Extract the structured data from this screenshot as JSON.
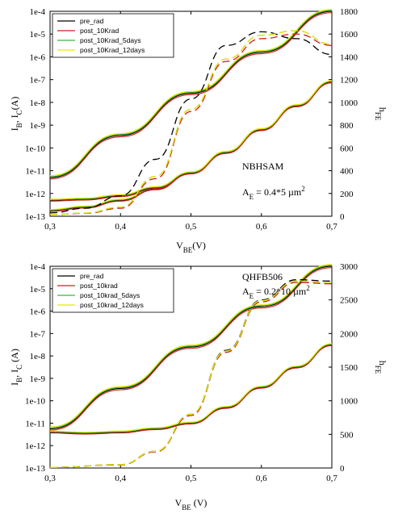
{
  "chart_data": [
    {
      "type": "line",
      "title": "",
      "xlabel": "V_BE(V)",
      "ylabel_left": "I_B, I_C(A)",
      "ylabel_right": "h_FE",
      "x_ticks": [
        "0,3",
        "0,4",
        "0,5",
        "0,6",
        "0,7"
      ],
      "y_left_ticks": [
        "1e-13",
        "1e-12",
        "1e-11",
        "1e-10",
        "1e-9",
        "1e-8",
        "1e-7",
        "1e-6",
        "1e-5",
        "1e-4"
      ],
      "y_right_ticks": [
        "0",
        "200",
        "400",
        "600",
        "800",
        "1000",
        "1200",
        "1400",
        "1600",
        "1800"
      ],
      "xlim": [
        0.3,
        0.7
      ],
      "ylim_left_log10": [
        -13,
        -4
      ],
      "ylim_right": [
        0,
        1800
      ],
      "legend_position": "top-left",
      "annotations": [
        "NBHSAM",
        "A_E = 0.4*5 µm^2"
      ],
      "series": [
        {
          "name": "pre_rad",
          "color": "#000000"
        },
        {
          "name": "post_10Krad",
          "color": "#cc2222"
        },
        {
          "name": "post_10Krad_5days",
          "color": "#3cb43c"
        },
        {
          "name": "post_10Krad_12days",
          "color": "#e6e600"
        }
      ],
      "ic_curves": [
        {
          "x": [
            0.3,
            0.4,
            0.5,
            0.6,
            0.7
          ],
          "log_y": [
            -11.3,
            -9.45,
            -7.6,
            -5.8,
            -4.0
          ]
        }
      ],
      "ib_curves": [
        {
          "x": [
            0.3,
            0.35,
            0.4,
            0.45,
            0.5,
            0.55,
            0.6,
            0.65,
            0.7
          ],
          "log_y": [
            -12.75,
            -12.6,
            -12.3,
            -11.8,
            -11.1,
            -10.2,
            -9.2,
            -8.15,
            -7.1
          ]
        },
        {
          "x": [
            0.3,
            0.35,
            0.4,
            0.45,
            0.5,
            0.55,
            0.6,
            0.65,
            0.7
          ],
          "log_y": [
            -12.3,
            -12.25,
            -12.1,
            -11.75,
            -11.1,
            -10.2,
            -9.2,
            -8.15,
            -7.1
          ]
        }
      ],
      "hfe_curves": [
        {
          "name": "pre_rad",
          "x": [
            0.3,
            0.35,
            0.4,
            0.45,
            0.5,
            0.55,
            0.6,
            0.65,
            0.7
          ],
          "y": [
            30,
            70,
            180,
            500,
            1030,
            1500,
            1620,
            1560,
            1420
          ]
        },
        {
          "name": "post_10Krad",
          "x": [
            0.3,
            0.35,
            0.4,
            0.45,
            0.5,
            0.55,
            0.6,
            0.65,
            0.7
          ],
          "y": [
            15,
            25,
            70,
            330,
            920,
            1360,
            1560,
            1600,
            1500
          ]
        },
        {
          "name": "post_10Krad_5days",
          "x": [
            0.3,
            0.35,
            0.4,
            0.45,
            0.5,
            0.55,
            0.6,
            0.65,
            0.7
          ],
          "y": [
            15,
            28,
            80,
            350,
            940,
            1380,
            1590,
            1630,
            1510
          ]
        },
        {
          "name": "post_10Krad_12days",
          "x": [
            0.3,
            0.35,
            0.4,
            0.45,
            0.5,
            0.55,
            0.6,
            0.65,
            0.7
          ],
          "y": [
            15,
            28,
            80,
            350,
            940,
            1380,
            1590,
            1630,
            1510
          ]
        }
      ]
    },
    {
      "type": "line",
      "title": "",
      "xlabel": "V_BE (V)",
      "ylabel_left": "I_B, I_C (A)",
      "ylabel_right": "h_FE",
      "x_ticks": [
        "0,3",
        "0,4",
        "0,5",
        "0,6",
        "0,7"
      ],
      "y_left_ticks": [
        "1e-13",
        "1e-12",
        "1e-11",
        "1e-10",
        "1e-9",
        "1e-8",
        "1e-7",
        "1e-6",
        "1e-5",
        "1e-4"
      ],
      "y_right_ticks": [
        "0",
        "500",
        "1000",
        "1500",
        "2000",
        "2500",
        "3000"
      ],
      "xlim": [
        0.3,
        0.7
      ],
      "ylim_left_log10": [
        -13,
        -4
      ],
      "ylim_right": [
        0,
        3000
      ],
      "legend_position": "top-left",
      "annotations": [
        "QHFB506",
        "A_E = 0.2*10 µm^2"
      ],
      "series": [
        {
          "name": "pre_rad",
          "color": "#000000"
        },
        {
          "name": "post_10krad",
          "color": "#cc2222"
        },
        {
          "name": "post_10krad_5days",
          "color": "#3cb43c"
        },
        {
          "name": "post_10krad_12days",
          "color": "#e6e600"
        }
      ],
      "ic_curves": [
        {
          "x": [
            0.3,
            0.4,
            0.5,
            0.6,
            0.7
          ],
          "log_y": [
            -11.25,
            -9.45,
            -7.6,
            -5.8,
            -4.0
          ]
        }
      ],
      "ib_curves": [
        {
          "x": [
            0.3,
            0.35,
            0.4,
            0.45,
            0.5,
            0.55,
            0.6,
            0.65,
            0.7
          ],
          "log_y": [
            -11.4,
            -11.45,
            -11.4,
            -11.25,
            -11.0,
            -10.3,
            -9.4,
            -8.5,
            -7.5
          ]
        }
      ],
      "hfe_curves": [
        {
          "name": "pre_rad",
          "x": [
            0.3,
            0.4,
            0.45,
            0.5,
            0.55,
            0.6,
            0.65,
            0.7
          ],
          "y": [
            10,
            50,
            250,
            800,
            1750,
            2500,
            2800,
            2780
          ]
        },
        {
          "name": "post_10krad",
          "x": [
            0.3,
            0.4,
            0.45,
            0.5,
            0.55,
            0.6,
            0.65,
            0.7
          ],
          "y": [
            10,
            45,
            240,
            780,
            1720,
            2470,
            2760,
            2740
          ]
        },
        {
          "name": "post_10krad_5days",
          "x": [
            0.3,
            0.4,
            0.45,
            0.5,
            0.55,
            0.6,
            0.65,
            0.7
          ],
          "y": [
            10,
            50,
            250,
            800,
            1740,
            2490,
            2780,
            2760
          ]
        },
        {
          "name": "post_10krad_12days",
          "x": [
            0.3,
            0.4,
            0.45,
            0.5,
            0.55,
            0.6,
            0.65,
            0.7
          ],
          "y": [
            10,
            50,
            250,
            800,
            1740,
            2490,
            2780,
            2760
          ]
        }
      ]
    }
  ]
}
